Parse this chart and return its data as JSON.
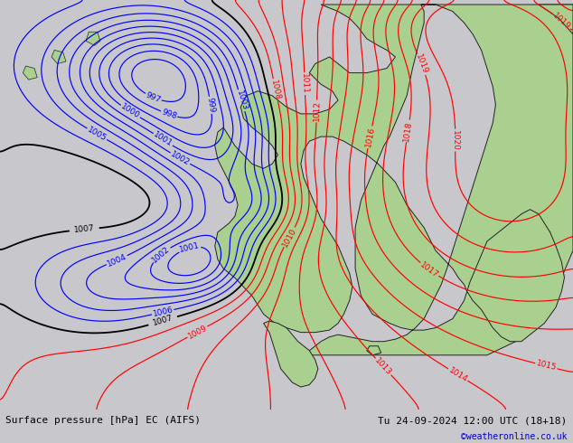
{
  "title_left": "Surface pressure [hPa] EC (AIFS)",
  "title_right": "Tu 24-09-2024 12:00 UTC (18+18)",
  "copyright": "©weatheronline.co.uk",
  "bg_color": "#c8c8cc",
  "land_color": "#aad090",
  "fig_width": 6.34,
  "fig_height": 4.9,
  "dpi": 100,
  "bottom_bar_color": "#d8d8d8",
  "bottom_text_color": "#000000",
  "copyright_color": "#0000cc",
  "blue_contour_color": "#0000ff",
  "red_contour_color": "#ff0000",
  "black_contour_color": "#000000",
  "contour_label_fontsize": 6.5
}
